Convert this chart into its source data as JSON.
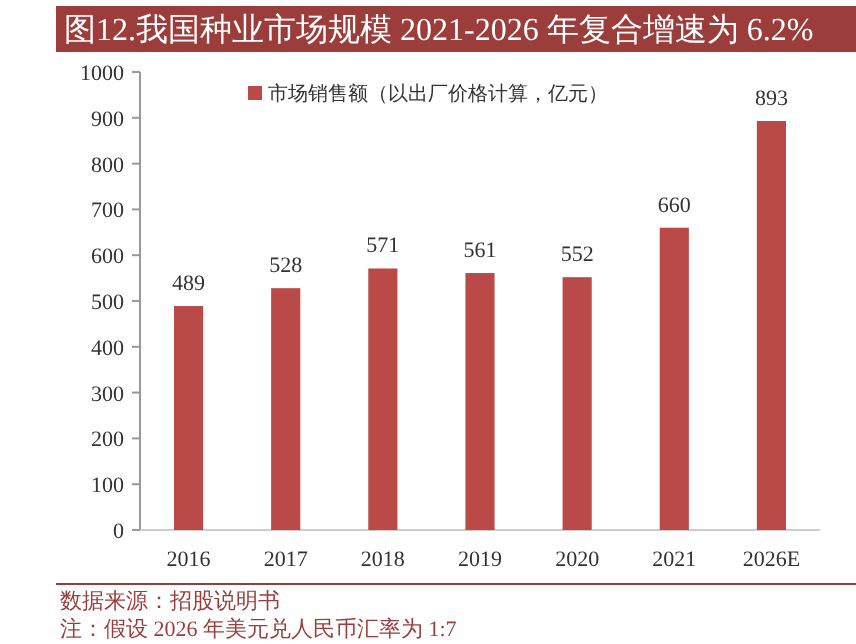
{
  "chart_data": {
    "type": "bar",
    "title": "图12.我国种业市场规模 2021-2026 年复合增速为 6.2%",
    "categories": [
      "2016",
      "2017",
      "2018",
      "2019",
      "2020",
      "2021",
      "2026E"
    ],
    "series": [
      {
        "name": "市场销售额（以出厂价格计算，亿元）",
        "color": "#b94a48",
        "values": [
          489,
          528,
          571,
          561,
          552,
          660,
          893
        ]
      }
    ],
    "ylim": [
      0,
      1000
    ],
    "yticks": [
      0,
      100,
      200,
      300,
      400,
      500,
      600,
      700,
      800,
      900,
      1000
    ],
    "data_labels": true,
    "legend": "top",
    "grid": false,
    "annotations": [
      "数据来源：招股说明书",
      "注：假设 2026 年美元兑人民币汇率为 1:7"
    ]
  }
}
